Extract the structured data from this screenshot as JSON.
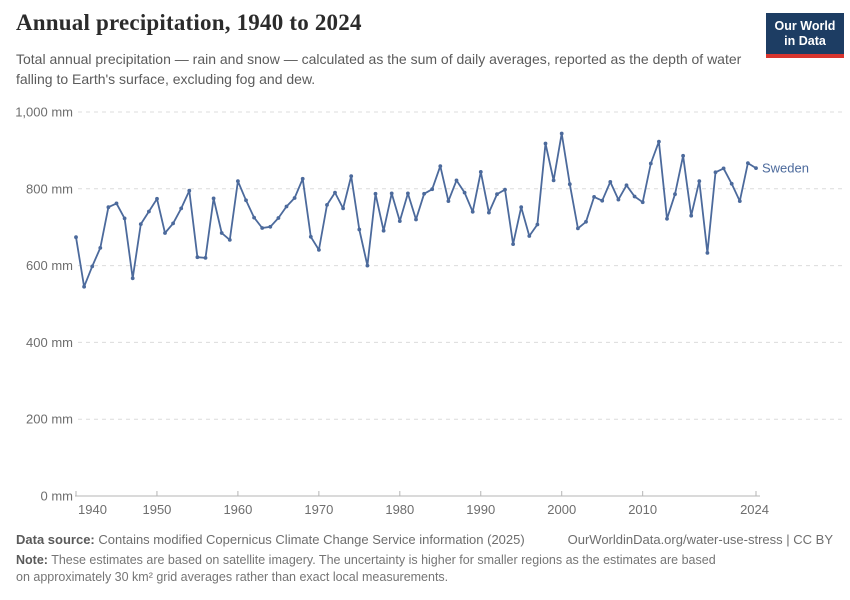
{
  "header": {
    "title": "Annual precipitation, 1940 to 2024",
    "subtitle": "Total annual precipitation — rain and snow — calculated as the sum of daily averages, reported as the depth of water falling to Earth's surface, excluding fog and dew."
  },
  "logo": {
    "line1": "Our World",
    "line2": "in Data",
    "bg_color": "#1d3d63",
    "bar_color": "#d8352e"
  },
  "chart_data": {
    "type": "line",
    "title": "Annual precipitation, 1940 to 2024",
    "xlabel": "",
    "ylabel": "",
    "unit": "mm",
    "ylim": [
      0,
      1000
    ],
    "grid": "horizontal-dashed",
    "legend_position": "end-of-line-label",
    "x": [
      1940,
      1941,
      1942,
      1943,
      1944,
      1945,
      1946,
      1947,
      1948,
      1949,
      1950,
      1951,
      1952,
      1953,
      1954,
      1955,
      1956,
      1957,
      1958,
      1959,
      1960,
      1961,
      1962,
      1963,
      1964,
      1965,
      1966,
      1967,
      1968,
      1969,
      1970,
      1971,
      1972,
      1973,
      1974,
      1975,
      1976,
      1977,
      1978,
      1979,
      1980,
      1981,
      1982,
      1983,
      1984,
      1985,
      1986,
      1987,
      1988,
      1989,
      1990,
      1991,
      1992,
      1993,
      1994,
      1995,
      1996,
      1997,
      1998,
      1999,
      2000,
      2001,
      2002,
      2003,
      2004,
      2005,
      2006,
      2007,
      2008,
      2009,
      2010,
      2011,
      2012,
      2013,
      2014,
      2015,
      2016,
      2017,
      2018,
      2019,
      2020,
      2021,
      2022,
      2023,
      2024
    ],
    "series": [
      {
        "name": "Sweden",
        "color": "#4C6A9C",
        "values": [
          674,
          545,
          598,
          646,
          752,
          762,
          723,
          567,
          708,
          741,
          774,
          685,
          710,
          749,
          795,
          622,
          620,
          775,
          685,
          667,
          820,
          770,
          725,
          698,
          701,
          724,
          754,
          776,
          826,
          675,
          641,
          758,
          790,
          749,
          833,
          694,
          600,
          787,
          691,
          788,
          716,
          788,
          720,
          787,
          799,
          859,
          768,
          822,
          790,
          740,
          844,
          738,
          786,
          798,
          656,
          752,
          677,
          707,
          918,
          822,
          944,
          812,
          697,
          714,
          779,
          769,
          818,
          772,
          809,
          780,
          765,
          866,
          923,
          722,
          786,
          886,
          730,
          820,
          633,
          843,
          853,
          813,
          768,
          867,
          854
        ]
      }
    ],
    "yticks": [
      {
        "value": 0,
        "label": "0 mm"
      },
      {
        "value": 200,
        "label": "200 mm"
      },
      {
        "value": 400,
        "label": "400 mm"
      },
      {
        "value": 600,
        "label": "600 mm"
      },
      {
        "value": 800,
        "label": "800 mm"
      },
      {
        "value": 1000,
        "label": "1,000 mm"
      }
    ],
    "xticks": [
      {
        "value": 1940,
        "label": "1940"
      },
      {
        "value": 1950,
        "label": "1950"
      },
      {
        "value": 1960,
        "label": "1960"
      },
      {
        "value": 1970,
        "label": "1970"
      },
      {
        "value": 1980,
        "label": "1980"
      },
      {
        "value": 1990,
        "label": "1990"
      },
      {
        "value": 2000,
        "label": "2000"
      },
      {
        "value": 2010,
        "label": "2010"
      },
      {
        "value": 2024,
        "label": "2024"
      }
    ]
  },
  "footer": {
    "source_label": "Data source:",
    "source_text": "Contains modified Copernicus Climate Change Service information (2025)",
    "link": "OurWorldinData.org/water-use-stress | CC BY",
    "note_label": "Note:",
    "note_text": "These estimates are based on satellite imagery. The uncertainty is higher for smaller regions as the estimates are based on approximately 30 km² grid averages rather than exact local measurements."
  }
}
